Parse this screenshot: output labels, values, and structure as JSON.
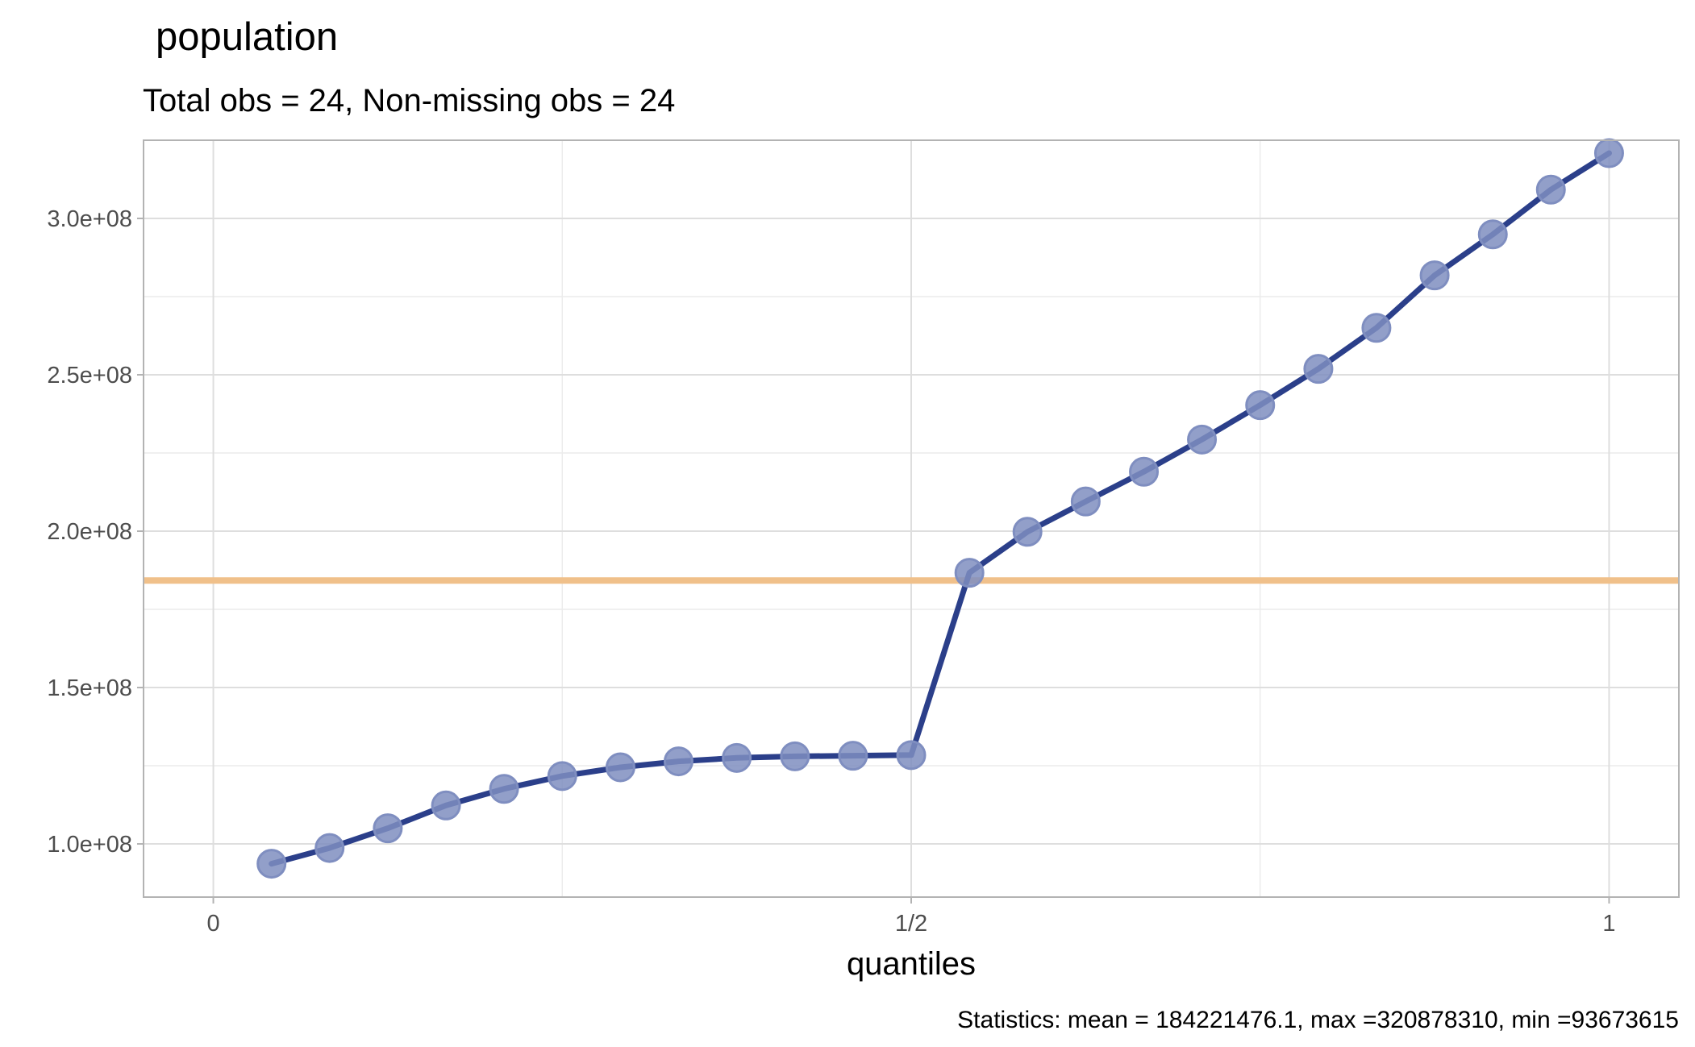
{
  "chart_data": {
    "type": "line",
    "title": "population",
    "subtitle": "Total obs = 24,  Non-missing obs = 24",
    "xlabel": "quantiles",
    "ylabel": "",
    "caption": "Statistics: mean = 184221476.1, max =320878310, min =93673615",
    "xlim": [
      -0.05,
      1.05
    ],
    "ylim": [
      83000000,
      325000000
    ],
    "x_ticks": [
      {
        "value": 0,
        "label": "0"
      },
      {
        "value": 0.5,
        "label": "1/2"
      },
      {
        "value": 1,
        "label": "1"
      }
    ],
    "x_minor_gridlines": [
      0.25,
      0.75
    ],
    "y_ticks": [
      {
        "value": 100000000,
        "label": "1.0e+08"
      },
      {
        "value": 150000000,
        "label": "1.5e+08"
      },
      {
        "value": 200000000,
        "label": "2.0e+08"
      },
      {
        "value": 250000000,
        "label": "2.5e+08"
      },
      {
        "value": 300000000,
        "label": "3.0e+08"
      }
    ],
    "y_minor_gridlines": [
      125000000,
      175000000,
      225000000,
      275000000,
      325000000
    ],
    "grid": true,
    "reference_line": {
      "type": "horizontal",
      "value": 184221476.1,
      "color": "#f0c08a"
    },
    "series": [
      {
        "color": "#2b3f8a",
        "point_color": "#7f8ec0",
        "x": [
          0.0417,
          0.0833,
          0.125,
          0.1667,
          0.2083,
          0.25,
          0.2917,
          0.3333,
          0.375,
          0.4167,
          0.4583,
          0.5,
          0.5417,
          0.5833,
          0.625,
          0.6667,
          0.7083,
          0.75,
          0.7917,
          0.8333,
          0.875,
          0.9167,
          0.9583,
          1.0
        ],
        "y": [
          93673615,
          98700000,
          105000000,
          112300000,
          117600000,
          121700000,
          124500000,
          126400000,
          127500000,
          128000000,
          128200000,
          128400000,
          186700000,
          199800000,
          209500000,
          219000000,
          229300000,
          240300000,
          251900000,
          265000000,
          281800000,
          294900000,
          309200000,
          320878310
        ]
      }
    ]
  }
}
